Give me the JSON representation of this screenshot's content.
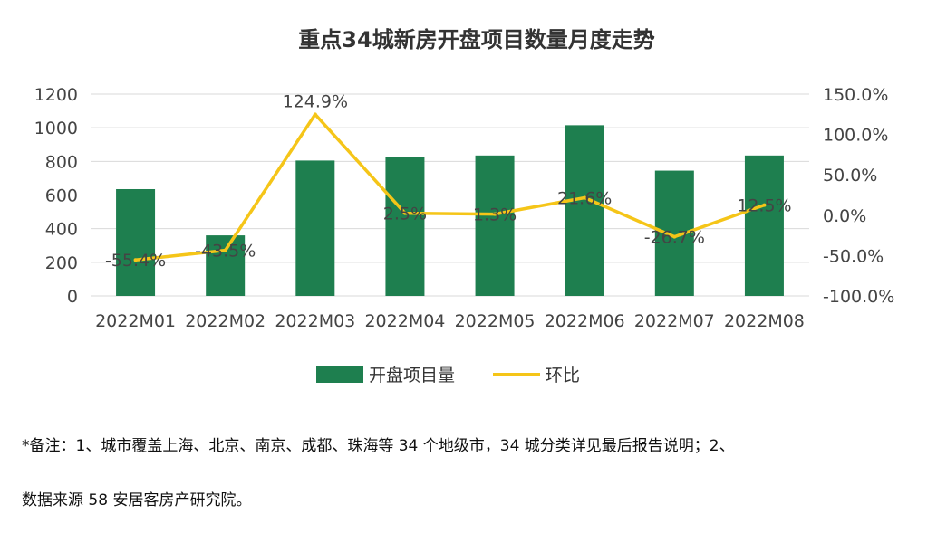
{
  "chart_data": {
    "type": "bar+line",
    "title": "重点34城新房开盘项目数量月度走势",
    "categories": [
      "2022M01",
      "2022M02",
      "2022M03",
      "2022M04",
      "2022M05",
      "2022M06",
      "2022M07",
      "2022M08"
    ],
    "series": [
      {
        "name": "开盘项目量",
        "type": "bar",
        "axis": "left",
        "color": "#1e7f4f",
        "values": [
          635,
          360,
          805,
          825,
          835,
          1015,
          745,
          835
        ]
      },
      {
        "name": "环比",
        "type": "line",
        "axis": "right",
        "color": "#f5c518",
        "values": [
          -55.4,
          -43.5,
          124.9,
          2.5,
          1.3,
          21.6,
          -26.7,
          12.5
        ],
        "labels": [
          "-55.4%",
          "-43.5%",
          "124.9%",
          "2.5%",
          "1.3%",
          "21.6%",
          "-26.7%",
          "12.5%"
        ]
      }
    ],
    "y_left": {
      "min": 0,
      "max": 1200,
      "step": 200,
      "ticks": [
        "0",
        "200",
        "400",
        "600",
        "800",
        "1000",
        "1200"
      ]
    },
    "y_right": {
      "min": -100,
      "max": 150,
      "step": 50,
      "ticks": [
        "-100.0%",
        "-50.0%",
        "0.0%",
        "50.0%",
        "100.0%",
        "150.0%"
      ]
    },
    "grid": true,
    "legend_position": "bottom"
  },
  "notes": [
    "*备注：1、城市覆盖上海、北京、南京、成都、珠海等 34 个地级市，34 城分类详见最后报告说明；2、",
    "数据来源 58 安居客房产研究院。"
  ]
}
